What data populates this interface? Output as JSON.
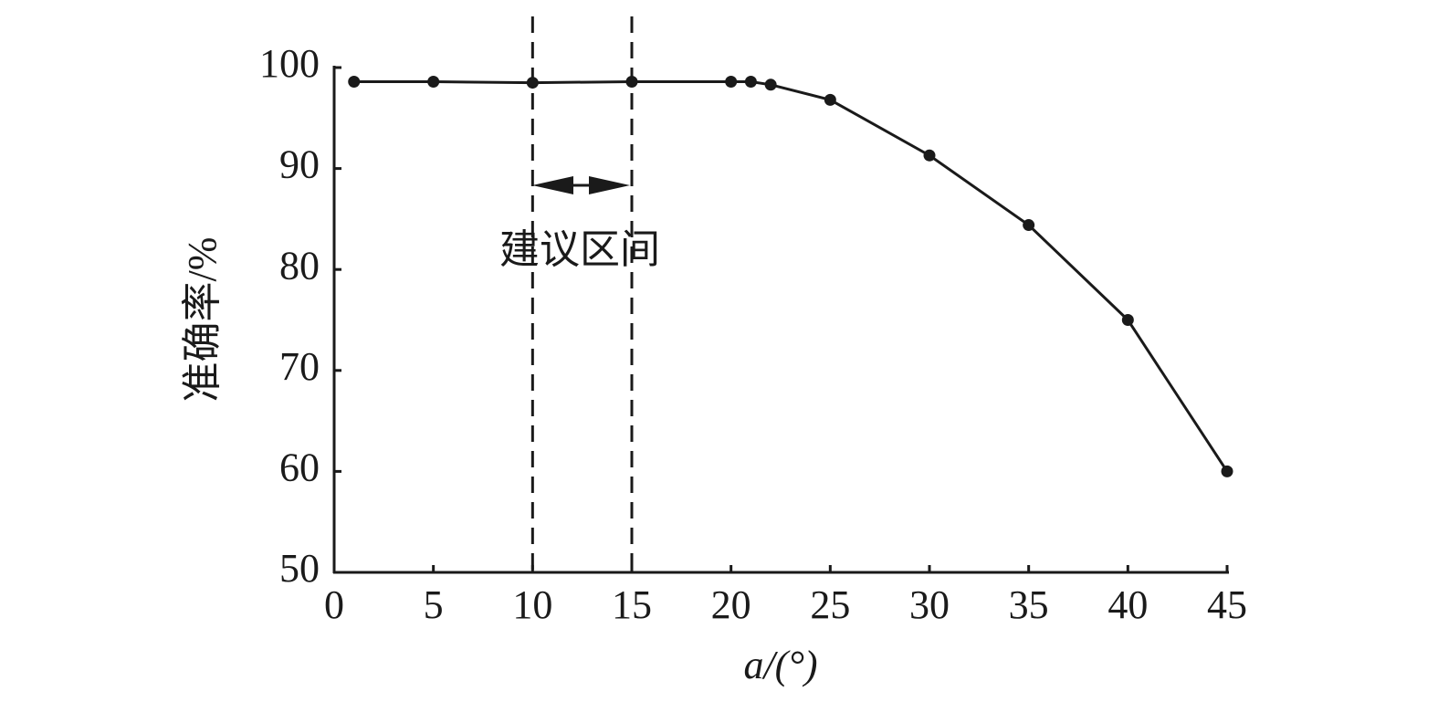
{
  "chart_data": {
    "type": "line",
    "x": [
      1,
      5,
      10,
      15,
      20,
      21,
      22,
      25,
      30,
      35,
      40,
      45
    ],
    "series": [
      {
        "color": "#1a1a1a",
        "values": [
          98.6,
          98.6,
          98.5,
          98.6,
          98.6,
          98.6,
          98.3,
          96.8,
          91.3,
          84.4,
          75,
          60
        ]
      }
    ],
    "xlim": [
      0,
      45
    ],
    "xticks": [
      0,
      5,
      10,
      15,
      20,
      25,
      30,
      35,
      40,
      45
    ],
    "ylim": [
      50,
      100
    ],
    "yticks": [
      50,
      60,
      70,
      80,
      90,
      100
    ],
    "xlabel": "a/(°)",
    "ylabel": "准确率/%",
    "reference_lines": [
      10,
      15
    ],
    "annotation": "建议区间"
  }
}
